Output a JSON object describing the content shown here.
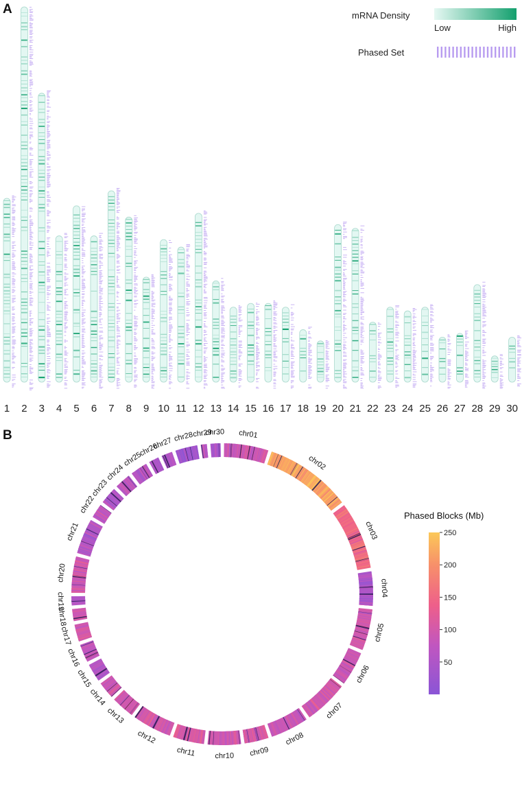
{
  "panel_a_label": "A",
  "panel_b_label": "B",
  "colors": {
    "density_low": "#d9f5ef",
    "density_high": "#14a06e",
    "phased": "#b89cf0",
    "chrom_outline": "#a8d8cc",
    "block_low": "#8a55d6",
    "block_mid": "#e552a5",
    "block_high": "#fbc15c"
  },
  "chart_data": [
    {
      "type": "heatmap",
      "title": "",
      "legend": {
        "density_title": "mRNA Density",
        "density_low": "Low",
        "density_high": "High",
        "phased_title": "Phased Set",
        "position": "top-right"
      },
      "categories": [
        "1",
        "2",
        "3",
        "4",
        "5",
        "6",
        "7",
        "8",
        "9",
        "10",
        "11",
        "12",
        "13",
        "14",
        "15",
        "16",
        "17",
        "18",
        "19",
        "20",
        "21",
        "22",
        "23",
        "24",
        "25",
        "26",
        "27",
        "28",
        "29",
        "30"
      ],
      "relative_lengths": [
        0.49,
        1.0,
        0.77,
        0.39,
        0.47,
        0.39,
        0.51,
        0.44,
        0.28,
        0.38,
        0.36,
        0.45,
        0.27,
        0.2,
        0.21,
        0.21,
        0.2,
        0.14,
        0.11,
        0.42,
        0.41,
        0.16,
        0.2,
        0.19,
        0.2,
        0.12,
        0.13,
        0.26,
        0.07,
        0.12
      ]
    },
    {
      "type": "pie",
      "title": "Phased Blocks (Mb)",
      "categories": [
        "chr01",
        "chr02",
        "chr03",
        "chr04",
        "chr05",
        "chr06",
        "chr07",
        "chr08",
        "chr09",
        "chr10",
        "chr11",
        "chr12",
        "chr13",
        "chr14",
        "chr15",
        "chr16",
        "chr17",
        "chr18",
        "chr19",
        "chr20",
        "chr21",
        "chr22",
        "chr23",
        "chr24",
        "chr25",
        "chr26",
        "chr27",
        "chr28",
        "chr29",
        "chr30"
      ],
      "values": [
        4.4,
        8.6,
        6.7,
        3.4,
        4.1,
        3.4,
        4.4,
        3.8,
        2.4,
        3.3,
        3.1,
        3.9,
        2.3,
        1.7,
        1.8,
        1.8,
        1.7,
        1.2,
        0.9,
        3.6,
        3.5,
        1.4,
        1.7,
        1.6,
        1.7,
        1.0,
        1.1,
        2.2,
        0.6,
        1.0
      ],
      "block_levels": [
        90,
        220,
        150,
        50,
        95,
        90,
        100,
        85,
        100,
        95,
        105,
        100,
        95,
        90,
        60,
        80,
        95,
        90,
        55,
        95,
        60,
        75,
        55,
        70,
        60,
        60,
        55,
        30,
        60,
        45
      ],
      "colorbar": {
        "ticks": [
          50,
          100,
          150,
          200,
          250
        ],
        "range": [
          0,
          250
        ],
        "position": "right"
      }
    }
  ]
}
